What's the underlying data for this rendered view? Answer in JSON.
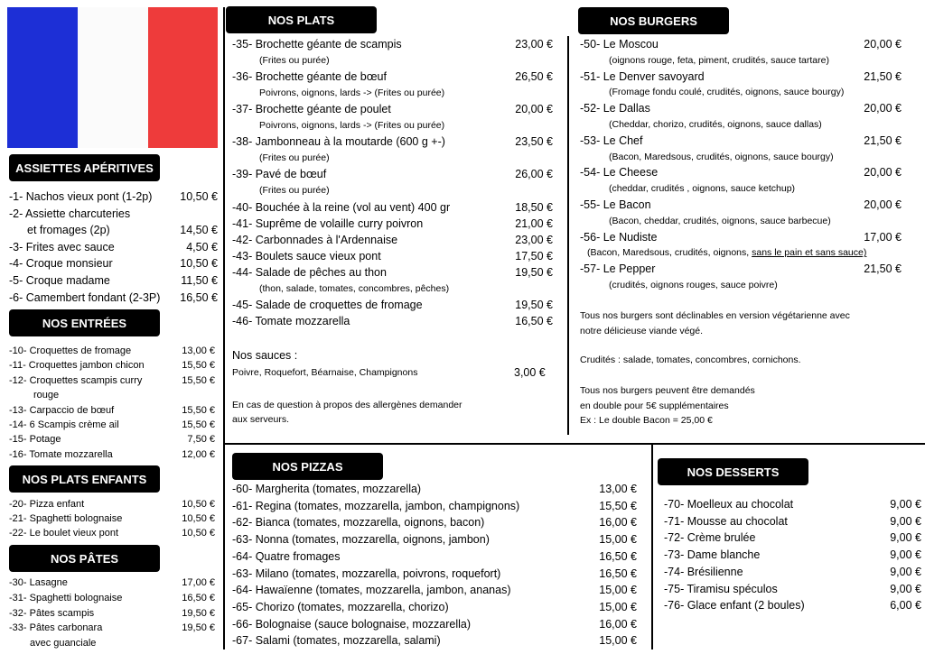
{
  "sections": [
    {
      "title": "ASSIETTES APÉRITIVES",
      "items": [
        {
          "name": "-1- Nachos vieux pont (1-2p)",
          "price": "10,50 €"
        },
        {
          "name": [
            "-2- Assiette charcuteries",
            "et fromages (2p)"
          ],
          "price": "14,50 €"
        },
        {
          "name": "-3- Frites avec sauce",
          "price": "4,50 €"
        },
        {
          "name": "-4- Croque monsieur",
          "price": "10,50 €"
        },
        {
          "name": "-5- Croque madame",
          "price": "11,50 €"
        },
        {
          "name": "-6- Camembert fondant  (2-3P)",
          "price": "16,50 €"
        }
      ]
    },
    {
      "title": "NOS ENTRÉES",
      "items": [
        {
          "name": "-10- Croquettes de fromage",
          "price": "13,00 €"
        },
        {
          "name": "-11- Croquettes jambon chicon",
          "price": "15,50 €"
        },
        {
          "name": "-12- Croquettes scampis curry",
          "desc": "rouge",
          "price": "15,50 €"
        },
        {
          "name": "-13- Carpaccio de bœuf",
          "price": "15,50 €"
        },
        {
          "name": "-14- 6 Scampis crème ail",
          "price": "15,50 €"
        },
        {
          "name": "-15- Potage",
          "price": "7,50 €"
        },
        {
          "name": "-16- Tomate mozzarella",
          "price": "12,00 €"
        }
      ]
    },
    {
      "title": "NOS PLATS ENFANTS",
      "items": [
        {
          "name": "-20- Pizza enfant",
          "price": "10,50 €"
        },
        {
          "name": "-21- Spaghetti bolognaise",
          "price": "10,50 €"
        },
        {
          "name": "-22- Le boulet vieux pont",
          "price": "10,50 €"
        }
      ]
    },
    {
      "title": "NOS PÂTES",
      "items": [
        {
          "name": "-30- Lasagne",
          "price": "17,00 €"
        },
        {
          "name": "-31- Spaghetti bolognaise",
          "price": "16,50 €"
        },
        {
          "name": "-32- Pâtes scampis",
          "price": "19,50 €"
        },
        {
          "name": "-33- Pâtes carbonara",
          "desc": "avec guanciale",
          "price": "19,50 €"
        }
      ]
    },
    {
      "title": "NOS PLATS",
      "items": [
        {
          "name": "-35- Brochette géante de scampis",
          "desc": "(Frites ou purée)",
          "price": "23,00 €"
        },
        {
          "name": "-36- Brochette géante de bœuf",
          "desc": "Poivrons, oignons, lards -> (Frites ou purée)",
          "price": "26,50 €"
        },
        {
          "name": "-37- Brochette géante de poulet",
          "desc": "Poivrons, oignons, lards -> (Frites ou purée)",
          "price": "20,00 €"
        },
        {
          "name": "-38- Jambonneau à la moutarde (600 g +-)",
          "desc": "(Frites ou purée)",
          "price": "23,50 €"
        },
        {
          "name": "-39- Pavé de bœuf",
          "desc": "(Frites ou purée)",
          "price": "26,00 €"
        },
        {
          "name": "-40- Bouchée à la reine (vol au vent) 400 gr",
          "price": "18,50 €"
        },
        {
          "name": "-41- Suprême de volaille curry poivron",
          "price": "21,00 €"
        },
        {
          "name": "-42- Carbonnades à l'Ardennaise",
          "price": "23,00 €"
        },
        {
          "name": "-43- Boulets sauce vieux pont",
          "price": "17,50 €"
        },
        {
          "name": "-44- Salade de pêches au thon",
          "desc": "(thon, salade, tomates, concombres, pêches)",
          "price": "19,50 €"
        },
        {
          "name": "-45- Salade de croquettes de fromage",
          "price": "19,50 €"
        },
        {
          "name": "-46- Tomate mozzarella",
          "price": "16,50 €"
        }
      ]
    },
    {
      "title": "NOS BURGERS",
      "items": [
        {
          "name": "-50- Le Moscou",
          "desc": "(oignons rouge, feta, piment, crudités, sauce tartare)",
          "price": "20,00 €"
        },
        {
          "name": "-51- Le Denver savoyard",
          "desc": "(Fromage fondu coulé, crudités, oignons, sauce bourgy)",
          "price": "21,50 €"
        },
        {
          "name": "-52- Le Dallas",
          "desc": "(Cheddar, chorizo, crudités, oignons, sauce dallas)",
          "price": "20,00 €"
        },
        {
          "name": "-53- Le Chef",
          "desc": "(Bacon, Maredsous, crudités, oignons,  sauce bourgy)",
          "price": "21,50 €"
        },
        {
          "name": "-54- Le Cheese",
          "desc": "(cheddar, crudités , oignons, sauce ketchup)",
          "price": "20,00 €"
        },
        {
          "name": "-55- Le Bacon",
          "desc": "(Bacon, cheddar, crudités, oignons, sauce barbecue)",
          "price": "20,00 €"
        },
        {
          "name": "-56- Le Nudiste",
          "desc": "(Bacon, Maredsous, crudités, oignons, ",
          "note": "sans le pain et sans sauce)",
          "price": "17,00 €"
        },
        {
          "name": "-57- Le Pepper",
          "desc": "(crudités, oignons rouges, sauce poivre)",
          "price": "21,50 €"
        }
      ]
    },
    {
      "title": "NOS PIZZAS",
      "items": [
        {
          "name": "-60- Margherita (tomates, mozzarella)",
          "price": "13,00 €"
        },
        {
          "name": "-61- Regina (tomates, mozzarella, jambon, champignons)",
          "price": "15,50 €"
        },
        {
          "name": "-62- Bianca (tomates, mozzarella, oignons, bacon)",
          "price": "16,00 €"
        },
        {
          "name": "-63- Nonna (tomates, mozzarella, oignons, jambon)",
          "price": "15,00 €"
        },
        {
          "name": "-64- Quatre fromages",
          "price": "16,50 €"
        },
        {
          "name": "-63- Milano (tomates, mozzarella, poivrons, roquefort)",
          "price": "16,50 €"
        },
        {
          "name": "-64- Hawaïenne (tomates, mozzarella, jambon, ananas)",
          "price": "15,00 €"
        },
        {
          "name": "-65- Chorizo (tomates, mozzarella, chorizo)",
          "price": "15,00 €"
        },
        {
          "name": "-66- Bolognaise (sauce bolognaise, mozzarella)",
          "price": "16,00 €"
        },
        {
          "name": "-67- Salami (tomates, mozzarella, salami)",
          "price": "15,00 €"
        }
      ]
    },
    {
      "title": "NOS DESSERTS",
      "items": [
        {
          "name": "-70- Moelleux au chocolat",
          "price": "9,00 €"
        },
        {
          "name": "-71- Mousse au chocolat",
          "price": "9,00 €"
        },
        {
          "name": "-72- Crème brulée",
          "price": "9,00 €"
        },
        {
          "name": "-73- Dame blanche",
          "price": "9,00 €"
        },
        {
          "name": "-74- Brésilienne",
          "price": "9,00 €"
        },
        {
          "name": "-75- Tiramisu spéculos",
          "price": "9,00 €"
        },
        {
          "name": "-76- Glace enfant (2 boules)",
          "price": "6,00 €"
        }
      ]
    }
  ],
  "sauces": {
    "title": "Nos sauces :",
    "list": "Poivre, Roquefort, Béarnaise, Champignons",
    "price": "3,00 €"
  },
  "allergens": [
    "En cas de question à propos des allergènes demander",
    "aux serveurs."
  ],
  "burger_notes": [
    "Tous nos burgers sont déclinables en version végétarienne avec",
    "notre délicieuse viande végé.",
    "Crudités : salade, tomates, concombres, cornichons.",
    "Tous nos burgers peuvent être demandés",
    "en double pour 5€ supplémentaires",
    "Ex : Le double Bacon = 25,00 €"
  ]
}
